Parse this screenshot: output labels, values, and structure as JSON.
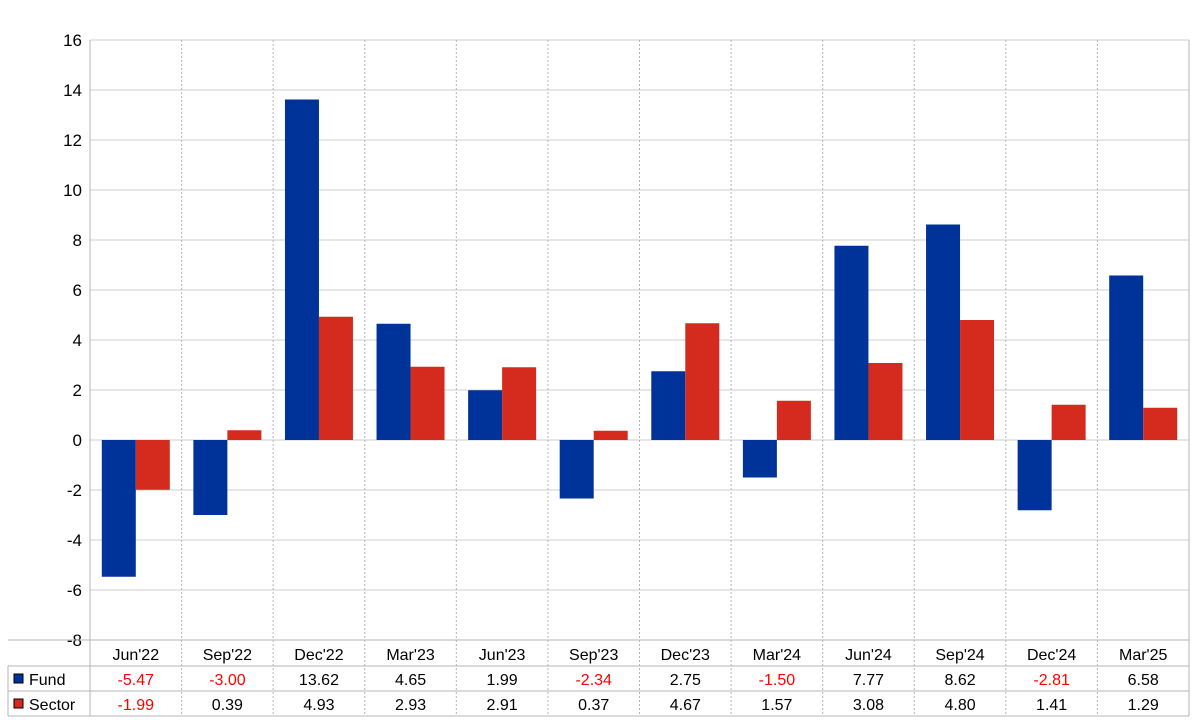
{
  "chart_data": {
    "type": "bar",
    "categories": [
      "Jun'22",
      "Sep'22",
      "Dec'22",
      "Mar'23",
      "Jun'23",
      "Sep'23",
      "Dec'23",
      "Mar'24",
      "Jun'24",
      "Sep'24",
      "Dec'24",
      "Mar'25"
    ],
    "series": [
      {
        "name": "Fund",
        "color": "#003399",
        "values": [
          -5.47,
          -3.0,
          13.62,
          4.65,
          1.99,
          -2.34,
          2.75,
          -1.5,
          7.77,
          8.62,
          -2.81,
          6.58
        ],
        "labels": [
          "-5.47",
          "-3.00",
          "13.62",
          "4.65",
          "1.99",
          "-2.34",
          "2.75",
          "-1.50",
          "7.77",
          "8.62",
          "-2.81",
          "6.58"
        ]
      },
      {
        "name": "Sector",
        "color": "#d52b1e",
        "values": [
          -1.99,
          0.39,
          4.93,
          2.93,
          2.91,
          0.37,
          4.67,
          1.57,
          3.08,
          4.8,
          1.41,
          1.29
        ],
        "labels": [
          "-1.99",
          "0.39",
          "4.93",
          "2.93",
          "2.91",
          "0.37",
          "4.67",
          "1.57",
          "3.08",
          "4.80",
          "1.41",
          "1.29"
        ]
      }
    ],
    "ylim": [
      -8,
      16
    ],
    "yticks": [
      "-8",
      "-6",
      "-4",
      "-2",
      "0",
      "2",
      "4",
      "6",
      "8",
      "10",
      "12",
      "14",
      "16"
    ],
    "title": "",
    "xlabel": "",
    "ylabel": "",
    "grid": true,
    "legend": "data-table-below",
    "negative_label_color": "#ff0000"
  }
}
